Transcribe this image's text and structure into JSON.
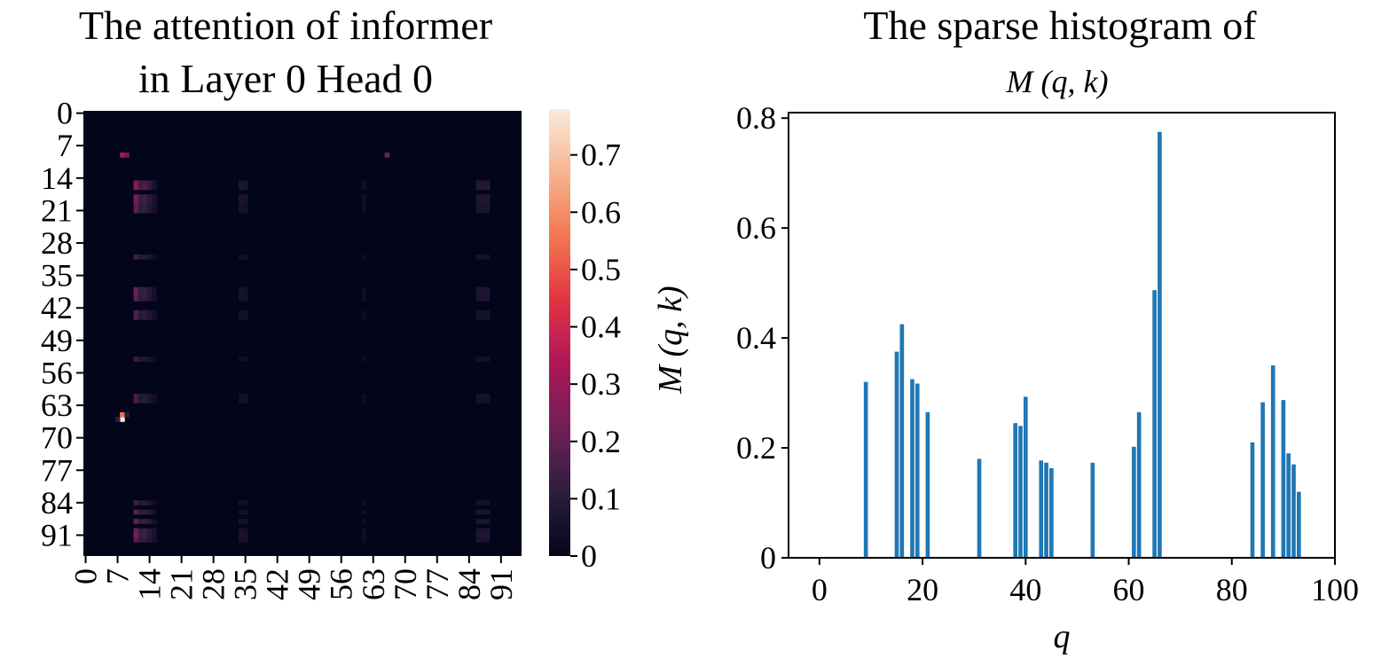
{
  "chart_data": [
    {
      "type": "heatmap",
      "title_line1": "The attention of informer",
      "title_line2": "in Layer 0 Head 0",
      "y_tick_labels": [
        "0",
        "7",
        "14",
        "21",
        "28",
        "35",
        "42",
        "49",
        "56",
        "63",
        "70",
        "77",
        "84",
        "91"
      ],
      "x_tick_labels": [
        "0",
        "7",
        "14",
        "21",
        "28",
        "35",
        "42",
        "49",
        "56",
        "63",
        "70",
        "77",
        "84",
        "91"
      ],
      "size": 96,
      "vmin": 0,
      "vmax": 0.78,
      "colorscale": [
        "#03051a",
        "#2c1e3e",
        "#701f57",
        "#ad1759",
        "#e13342",
        "#f37651",
        "#f6b48f",
        "#faebdd"
      ],
      "colorbar_ticks": [
        {
          "value": 0,
          "label": "0"
        },
        {
          "value": 0.1,
          "label": "0.1"
        },
        {
          "value": 0.2,
          "label": "0.2"
        },
        {
          "value": 0.3,
          "label": "0.3"
        },
        {
          "value": 0.4,
          "label": "0.4"
        },
        {
          "value": 0.5,
          "label": "0.5"
        },
        {
          "value": 0.6,
          "label": "0.6"
        },
        {
          "value": 0.7,
          "label": "0.7"
        }
      ],
      "colorbar_label": "M (q, k)",
      "hot_cells": [
        {
          "row": 66,
          "col": 8,
          "value": 0.78
        },
        {
          "row": 65,
          "col": 8,
          "value": 0.55
        },
        {
          "row": 9,
          "col": 8,
          "value": 0.32
        },
        {
          "row": 9,
          "col": 9,
          "value": 0.22
        },
        {
          "row": 9,
          "col": 66,
          "value": 0.22
        },
        {
          "row": 66,
          "col": 7,
          "value": 0.12
        },
        {
          "row": 65,
          "col": 9,
          "value": 0.1
        }
      ],
      "row_intensity": [
        {
          "row": 15,
          "value": 0.24
        },
        {
          "row": 16,
          "value": 0.26
        },
        {
          "row": 18,
          "value": 0.22
        },
        {
          "row": 19,
          "value": 0.22
        },
        {
          "row": 20,
          "value": 0.18
        },
        {
          "row": 21,
          "value": 0.18
        },
        {
          "row": 31,
          "value": 0.14
        },
        {
          "row": 38,
          "value": 0.2
        },
        {
          "row": 39,
          "value": 0.2
        },
        {
          "row": 40,
          "value": 0.18
        },
        {
          "row": 43,
          "value": 0.16
        },
        {
          "row": 44,
          "value": 0.16
        },
        {
          "row": 53,
          "value": 0.12
        },
        {
          "row": 61,
          "value": 0.14
        },
        {
          "row": 62,
          "value": 0.14
        },
        {
          "row": 84,
          "value": 0.14
        },
        {
          "row": 86,
          "value": 0.18
        },
        {
          "row": 88,
          "value": 0.2
        },
        {
          "row": 90,
          "value": 0.2
        },
        {
          "row": 91,
          "value": 0.22
        },
        {
          "row": 92,
          "value": 0.18
        }
      ],
      "column_intensity": [
        {
          "col": 11,
          "value": 1.0
        },
        {
          "col": 12,
          "value": 0.55
        },
        {
          "col": 13,
          "value": 0.6
        },
        {
          "col": 14,
          "value": 0.4
        },
        {
          "col": 15,
          "value": 0.2
        },
        {
          "col": 34,
          "value": 0.22
        },
        {
          "col": 35,
          "value": 0.2
        },
        {
          "col": 61,
          "value": 0.12
        },
        {
          "col": 86,
          "value": 0.3
        },
        {
          "col": 87,
          "value": 0.28
        },
        {
          "col": 88,
          "value": 0.3
        }
      ]
    },
    {
      "type": "bar",
      "title_line1": "The sparse histogram of",
      "title_line2": "M (q, k)",
      "xlabel": "q",
      "ylabel": "",
      "xlim": [
        -6,
        100
      ],
      "ylim": [
        0,
        0.81
      ],
      "x_ticks": [
        0,
        20,
        40,
        60,
        80,
        100
      ],
      "y_ticks": [
        {
          "value": 0,
          "label": "0"
        },
        {
          "value": 0.2,
          "label": "0.2"
        },
        {
          "value": 0.4,
          "label": "0.4"
        },
        {
          "value": 0.6,
          "label": "0.6"
        },
        {
          "value": 0.8,
          "label": "0.8"
        }
      ],
      "bar_color": "#1f77b4",
      "x": [
        9,
        15,
        16,
        18,
        19,
        21,
        31,
        38,
        39,
        40,
        43,
        44,
        45,
        53,
        61,
        62,
        65,
        66,
        84,
        86,
        88,
        90,
        91,
        92,
        93
      ],
      "values": [
        0.32,
        0.375,
        0.425,
        0.325,
        0.317,
        0.265,
        0.18,
        0.245,
        0.24,
        0.293,
        0.177,
        0.173,
        0.163,
        0.173,
        0.202,
        0.265,
        0.487,
        0.775,
        0.21,
        0.283,
        0.35,
        0.287,
        0.19,
        0.17,
        0.12
      ]
    }
  ]
}
